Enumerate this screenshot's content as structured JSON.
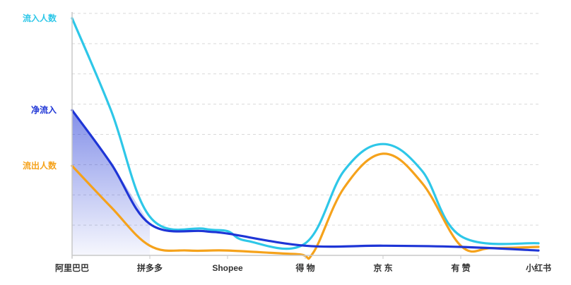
{
  "chart_data": {
    "type": "line",
    "title": "",
    "xlabel": "",
    "ylabel": "",
    "categories": [
      "阿里巴巴",
      "拼多多",
      "Shopee",
      "得 物",
      "京 东",
      "有 赞",
      "小红书"
    ],
    "ylim": [
      0,
      100
    ],
    "grid": true,
    "series": [
      {
        "name": "流入人数",
        "color": "#2ec7e8",
        "x": [
          0,
          0.5,
          1,
          1.7,
          2,
          2.25,
          3,
          3.5,
          4,
          4.5,
          5,
          6
        ],
        "y": [
          98,
          60,
          16,
          11,
          10,
          6,
          5,
          35,
          46,
          35,
          8,
          5
        ]
      },
      {
        "name": "净流入",
        "color": "#1e35d6",
        "x": [
          0,
          0.5,
          1,
          1.7,
          2,
          3,
          4,
          5,
          6
        ],
        "y": [
          60,
          38,
          13,
          10,
          9,
          4,
          4,
          3.5,
          2
        ],
        "area_fill": true
      },
      {
        "name": "流出人数",
        "color": "#f5a21b",
        "x": [
          0,
          0.5,
          1,
          1.5,
          2,
          2.9,
          3.1,
          3.5,
          4,
          4.5,
          5,
          5.4,
          6
        ],
        "y": [
          37,
          20,
          4,
          2,
          2,
          0.5,
          1,
          28,
          42,
          30,
          4,
          3,
          3.5
        ]
      }
    ]
  }
}
